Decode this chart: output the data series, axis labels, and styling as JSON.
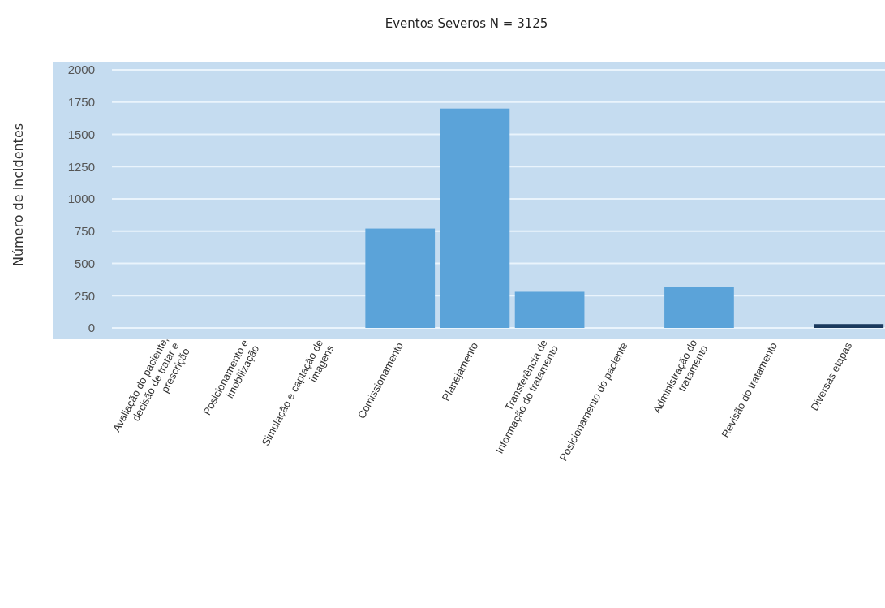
{
  "chart_data": {
    "type": "bar",
    "title": "Eventos Severos N = 3125",
    "ylabel": "Número de incidentes",
    "categories": [
      "Avaliação do paciente,  decisão de tratar e prescrição",
      "Posicionamento e imobilização",
      "Simulação e captação de imagens",
      "Comissionamento",
      "Planejamento",
      "Transferência de Informação do tratamento",
      "Posicionamento do paciente",
      "Administração do tratamento",
      "Revisão do tratamento",
      "Diversas etapas"
    ],
    "values": [
      0,
      0,
      0,
      770,
      1700,
      280,
      0,
      320,
      0,
      30
    ],
    "colors": [
      "#5ba3d9",
      "#5ba3d9",
      "#5ba3d9",
      "#5ba3d9",
      "#5ba3d9",
      "#5ba3d9",
      "#5ba3d9",
      "#5ba3d9",
      "#5ba3d9",
      "#1b3a5e"
    ],
    "ylim": [
      0,
      2000
    ],
    "yticks": [
      0,
      250,
      500,
      750,
      1000,
      1250,
      1500,
      1750,
      2000
    ],
    "grid": "y"
  }
}
